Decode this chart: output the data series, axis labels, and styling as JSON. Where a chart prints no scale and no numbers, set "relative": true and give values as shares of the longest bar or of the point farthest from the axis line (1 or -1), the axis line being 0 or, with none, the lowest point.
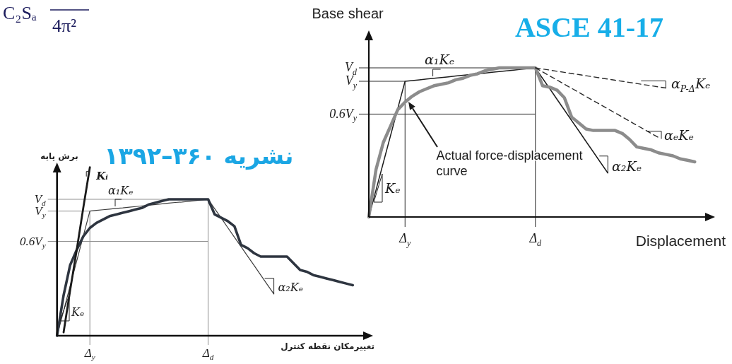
{
  "chart_data": [
    {
      "type": "line",
      "relative": true,
      "grid": "x",
      "title": "نشریه ۳۶۰–۱۳۹۲",
      "xlabel": "تغییرمکان نقطه کنترل",
      "ylabel": "برش پایه",
      "categories": [
        null,
        null,
        null,
        null,
        null,
        "Δ$_{y}$",
        null,
        null,
        null,
        null,
        null,
        null,
        null,
        null,
        null,
        null,
        null,
        null,
        null,
        null,
        null,
        null,
        null,
        "Δ$_{d}$",
        null,
        null,
        null,
        null,
        null,
        null,
        null,
        null,
        null,
        null,
        null,
        null,
        null,
        null,
        null,
        null,
        null,
        null,
        null,
        null,
        null,
        null
      ],
      "series": [
        {
          "color": "#3c3c3c",
          "values": [
            0,
            0.148,
            0.296,
            0.444,
            0.592,
            0.74,
            0.744,
            0.748,
            0.752,
            0.756,
            0.759,
            0.763,
            0.767,
            0.771,
            0.775,
            0.779,
            0.783,
            0.787,
            0.791,
            0.794,
            0.798,
            0.802,
            0.806,
            0.81,
            0.754,
            0.698,
            0.641,
            0.585,
            0.529,
            0.473,
            0.417,
            0.36,
            0.304,
            0.248,
            null,
            null,
            null,
            null,
            null,
            null,
            null,
            null,
            null,
            null,
            null,
            null
          ]
        },
        {
          "color": "#2e3540",
          "values": [
            0,
            0.24,
            0.42,
            0.51,
            0.59,
            0.64,
            0.67,
            0.69,
            0.71,
            0.72,
            0.73,
            0.74,
            0.75,
            0.76,
            0.78,
            0.79,
            0.8,
            0.81,
            0.81,
            0.81,
            0.81,
            0.81,
            0.81,
            0.81,
            0.72,
            0.7,
            0.68,
            0.65,
            0.54,
            0.52,
            0.49,
            0.47,
            0.47,
            0.47,
            0.47,
            0.47,
            0.43,
            0.39,
            0.38,
            0.36,
            0.35,
            0.34,
            0.33,
            0.32,
            0.31,
            0.3
          ]
        },
        {
          "name": "Kᵢ",
          "color": "#1a1a1a",
          "values": [
            null,
            0.02,
            0.27,
            0.51,
            0.76,
            1,
            null,
            null,
            null,
            null,
            null,
            null,
            null,
            null,
            null,
            null,
            null,
            null,
            null,
            null,
            null,
            null,
            null,
            null,
            null,
            null,
            null,
            null,
            null,
            null,
            null,
            null,
            null,
            null,
            null,
            null,
            null,
            null,
            null,
            null,
            null,
            null,
            null,
            null,
            null,
            null
          ]
        }
      ],
      "ref_lines": [
        {
          "axis": "y",
          "value": 0.81,
          "label": "V$_{d}$",
          "color": "#8c8c8c"
        },
        {
          "axis": "y",
          "value": 0.74,
          "label": "V$_{y}$",
          "color": "#8c8c8c"
        },
        {
          "axis": "y",
          "value": 0.56,
          "label": "0.6V$_{y}$",
          "color": "#8c8c8c"
        }
      ],
      "annotations": [
        "α₁Kₑ",
        "Kₑ",
        "α₂Kₑ",
        "C₂Sₐ",
        "4π²"
      ]
    },
    {
      "type": "line",
      "relative": true,
      "grid": "x",
      "title": "ASCE 41-17",
      "xlabel": "Displacement",
      "ylabel": "Base shear",
      "categories": [
        null,
        null,
        null,
        null,
        null,
        "Δ$_{y}$",
        null,
        null,
        null,
        null,
        null,
        null,
        null,
        null,
        null,
        null,
        null,
        null,
        null,
        null,
        null,
        null,
        null,
        "Δ$_{d}$",
        null,
        null,
        null,
        null,
        null,
        null,
        null,
        null,
        null,
        null,
        null,
        null,
        null,
        null,
        null,
        null,
        null,
        null,
        null,
        null,
        null,
        null
      ],
      "series": [
        {
          "color": "#1c1c1c",
          "values": [
            0,
            0.182,
            0.364,
            0.546,
            0.728,
            0.91,
            0.915,
            0.92,
            0.925,
            0.93,
            0.935,
            0.94,
            0.945,
            0.95,
            0.955,
            0.96,
            0.965,
            0.97,
            0.975,
            0.98,
            0.985,
            0.99,
            0.995,
            1,
            0.929,
            0.859,
            0.788,
            0.718,
            0.647,
            0.577,
            0.506,
            0.436,
            0.365,
            0.295,
            null,
            null,
            null,
            null,
            null,
            null,
            null,
            null,
            null,
            null,
            null,
            null
          ]
        },
        {
          "color": "#8c8c8c",
          "values": [
            0,
            0.32,
            0.5,
            0.61,
            0.72,
            0.77,
            0.81,
            0.84,
            0.86,
            0.88,
            0.89,
            0.9,
            0.92,
            0.93,
            0.95,
            0.96,
            0.98,
            0.99,
            1,
            1,
            1,
            1,
            1,
            1,
            0.88,
            0.87,
            0.85,
            0.8,
            0.67,
            0.63,
            0.59,
            0.58,
            0.58,
            0.58,
            0.58,
            0.56,
            0.52,
            0.47,
            0.46,
            0.45,
            0.43,
            0.42,
            0.41,
            0.39,
            0.38,
            0.37
          ]
        },
        {
          "color": "#2a2a2a",
          "line_style": "dashed",
          "values": [
            null,
            null,
            null,
            null,
            null,
            null,
            null,
            null,
            null,
            null,
            null,
            null,
            null,
            null,
            null,
            null,
            null,
            null,
            null,
            null,
            null,
            null,
            null,
            1,
            0.992,
            0.985,
            0.977,
            0.97,
            0.962,
            0.955,
            0.947,
            0.94,
            0.932,
            0.925,
            0.917,
            0.91,
            0.902,
            0.895,
            0.887,
            0.88,
            0.872,
            0.865,
            null,
            null,
            null,
            null
          ]
        },
        {
          "color": "#2a2a2a",
          "line_style": "dashed",
          "values": [
            null,
            null,
            null,
            null,
            null,
            null,
            null,
            null,
            null,
            null,
            null,
            null,
            null,
            null,
            null,
            null,
            null,
            null,
            null,
            null,
            null,
            null,
            null,
            1,
            0.973,
            0.945,
            0.918,
            0.89,
            0.863,
            0.835,
            0.808,
            0.78,
            0.753,
            0.725,
            0.698,
            0.67,
            0.643,
            0.615,
            0.588,
            0.56,
            0.533,
            null,
            null,
            null,
            null,
            null
          ]
        }
      ],
      "ref_lines": [
        {
          "axis": "y",
          "value": 1,
          "label": "V$_{d}$",
          "color": "#2a2a2a"
        },
        {
          "axis": "y",
          "value": 0.91,
          "label": "V$_{y}$",
          "color": "#2a2a2a"
        },
        {
          "axis": "y",
          "value": 0.69,
          "label": "0.6V$_{y}$",
          "color": "#2a2a2a"
        }
      ],
      "annotations": [
        "α₁Kₑ",
        "Kₑ",
        "α₂Kₑ",
        "Actual force-displacement curve",
        "α$_{P-Δ}$Kₑ",
        "αₑKₑ"
      ]
    }
  ]
}
